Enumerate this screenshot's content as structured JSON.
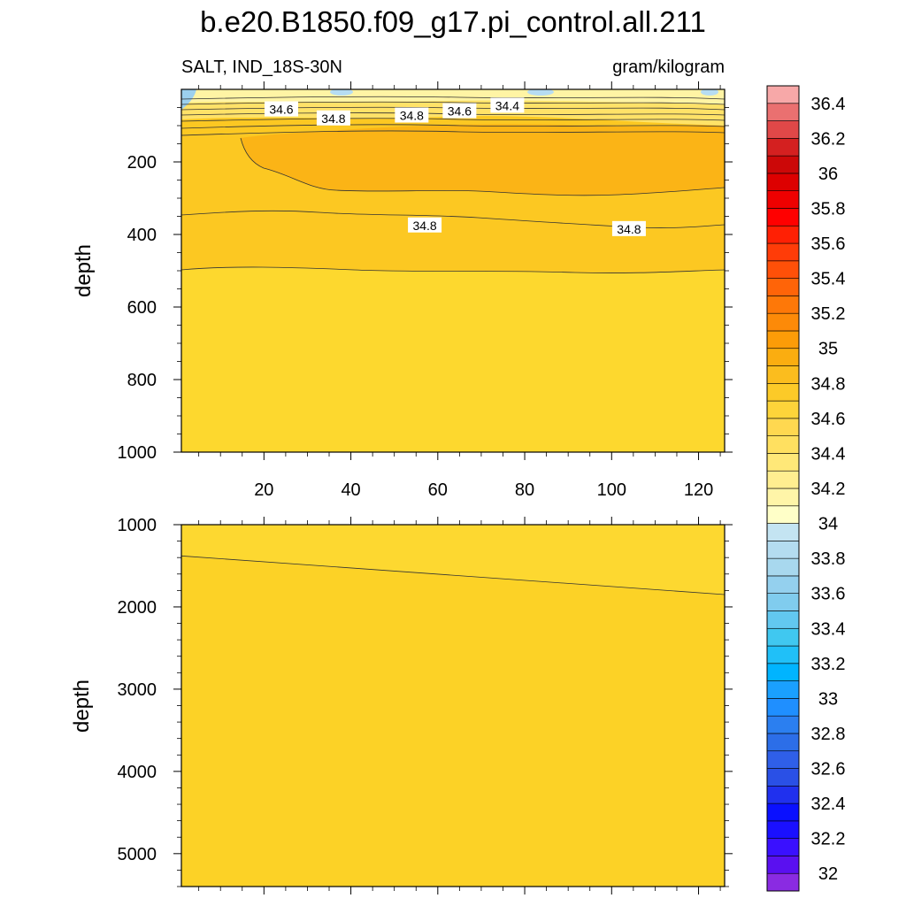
{
  "title": "b.e20.B1850.f09_g17.pi_control.all.211",
  "left_string": "SALT, IND_18S-30N",
  "right_string": "gram/kilogram",
  "chart_data": [
    {
      "type": "contour",
      "panel": "upper",
      "ylabel": "depth",
      "xlabel": "",
      "xlim": [
        1,
        126
      ],
      "ylim": [
        1000,
        0
      ],
      "y_reversed": true,
      "xticks": [
        20,
        40,
        60,
        80,
        100,
        120
      ],
      "yticks": [
        200,
        400,
        600,
        800,
        1000
      ],
      "grid": false,
      "contour_labels": [
        {
          "text": "34.6",
          "x": 24,
          "y": 55
        },
        {
          "text": "34.8",
          "x": 36,
          "y": 80
        },
        {
          "text": "34.8",
          "x": 54,
          "y": 72
        },
        {
          "text": "34.6",
          "x": 65,
          "y": 60
        },
        {
          "text": "34.4",
          "x": 76,
          "y": 45
        },
        {
          "text": "34.8",
          "x": 57,
          "y": 375
        },
        {
          "text": "34.8",
          "x": 104,
          "y": 385
        }
      ],
      "regions": [
        {
          "level_range": [
            33.8,
            34.0
          ],
          "description": "fresh surface patches near x 1-6"
        },
        {
          "level_range": [
            34.2,
            34.6
          ],
          "description": "surface layer 0-70 m"
        },
        {
          "level_range": [
            34.9,
            35.0
          ],
          "description": "salinity maximum core ~120-300 m from x 15 to 126"
        },
        {
          "level_range": [
            34.8,
            34.9
          ],
          "description": "~300-500 m"
        },
        {
          "level_range": [
            34.7,
            34.8
          ],
          "description": "below ~500 m"
        }
      ]
    },
    {
      "type": "contour",
      "panel": "lower",
      "ylabel": "depth",
      "xlabel": "",
      "xlim": [
        1,
        126
      ],
      "ylim": [
        5400,
        1000
      ],
      "y_reversed": true,
      "yticks": [
        1000,
        2000,
        3000,
        4000,
        5000
      ],
      "grid": false,
      "contour_lines": [
        {
          "level": 34.7,
          "points": [
            [
              1,
              1380
            ],
            [
              126,
              1850
            ]
          ]
        }
      ],
      "regions": [
        {
          "level_range": [
            34.7,
            34.8
          ],
          "description": "above the sloping contour"
        },
        {
          "level_range": [
            34.6,
            34.7
          ],
          "description": "below the sloping contour"
        }
      ]
    }
  ],
  "colorbar": {
    "orientation": "vertical",
    "levels": [
      32,
      32.1,
      32.2,
      32.3,
      32.4,
      32.5,
      32.6,
      32.7,
      32.8,
      32.9,
      33,
      33.1,
      33.2,
      33.3,
      33.4,
      33.5,
      33.6,
      33.7,
      33.8,
      33.9,
      34,
      34.1,
      34.2,
      34.3,
      34.4,
      34.5,
      34.6,
      34.7,
      34.8,
      34.9,
      35,
      35.1,
      35.2,
      35.3,
      35.4,
      35.5,
      35.6,
      35.7,
      35.8,
      35.9,
      36,
      36.1,
      36.2,
      36.3,
      36.4,
      36.5
    ],
    "labels": [
      "32",
      "32.2",
      "32.4",
      "32.6",
      "32.8",
      "33",
      "33.2",
      "33.4",
      "33.6",
      "33.8",
      "34",
      "34.2",
      "34.4",
      "34.6",
      "34.8",
      "35",
      "35.2",
      "35.4",
      "35.6",
      "35.8",
      "36",
      "36.2",
      "36.4"
    ],
    "colors": [
      "#8a2be2",
      "#5a10f0",
      "#3a10ff",
      "#1a10ff",
      "#0a10ff",
      "#2030ee",
      "#2a50e6",
      "#2f5fe8",
      "#2c6ee8",
      "#2b7ff0",
      "#1f8fff",
      "#1aa0ff",
      "#00b4ff",
      "#20c0f8",
      "#40c8f0",
      "#62c8f0",
      "#80ccee",
      "#94d0ee",
      "#a8d8ee",
      "#b4dcf0",
      "#c4e4f2",
      "#ffffc8",
      "#fff5a8",
      "#ffee90",
      "#ffe878",
      "#ffe060",
      "#ffd850",
      "#fdd43a",
      "#fcca28",
      "#fbbd1e",
      "#fbad10",
      "#fc9c08",
      "#fd8a08",
      "#fe7808",
      "#ff6408",
      "#ff5008",
      "#ff3c08",
      "#ff2004",
      "#ff0000",
      "#ee0000",
      "#dd0000",
      "#cc0808",
      "#d42020",
      "#e04848",
      "#ea7070",
      "#f7a8a8"
    ]
  }
}
